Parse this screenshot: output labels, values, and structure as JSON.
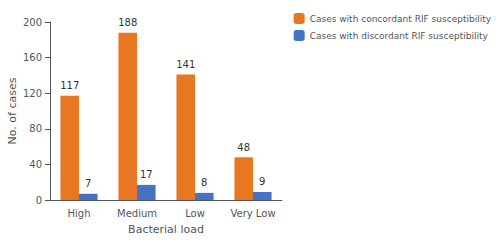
{
  "chart_data": {
    "type": "bar",
    "categories": [
      "High",
      "Medium",
      "Low",
      "Very Low"
    ],
    "series": [
      {
        "name": "Cases with concordant RIF susceptibility",
        "color": "#E87722",
        "values": [
          117,
          188,
          141,
          48
        ]
      },
      {
        "name": "Cases with discordant RIF susceptibility",
        "color": "#4472C4",
        "values": [
          7,
          17,
          8,
          9
        ]
      }
    ],
    "xlabel": "Bacterial load",
    "ylabel": "No. of cases",
    "ylim": [
      0,
      200
    ],
    "yticks": [
      0,
      40,
      80,
      120,
      160,
      200
    ],
    "grid": false,
    "legend": "right",
    "data_labels": true
  }
}
